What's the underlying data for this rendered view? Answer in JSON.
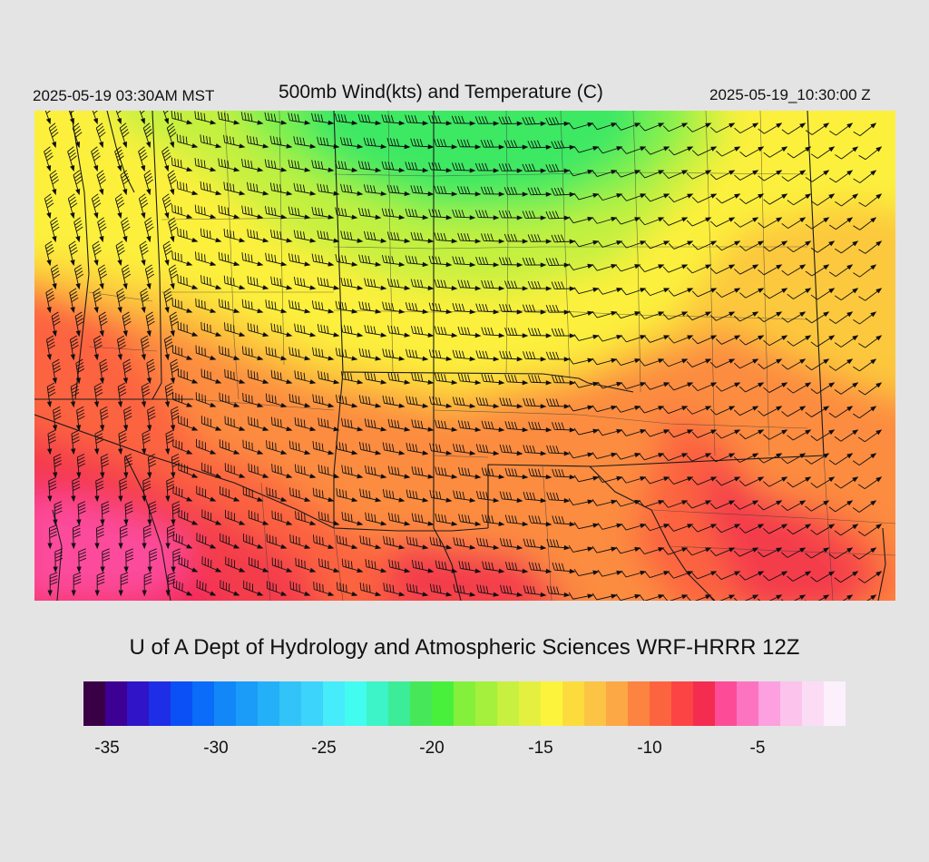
{
  "header": {
    "local_time": "2025-05-19 03:30AM MST",
    "title": "500mb Wind(kts) and Temperature (C)",
    "utc_time": "2025-05-19_10:30:00 Z"
  },
  "footer": {
    "credit": "U of A Dept of Hydrology and Atmospheric Sciences WRF-HRRR 12Z"
  },
  "colorbar": {
    "colors": [
      "#3a0046",
      "#3d0094",
      "#2f14c8",
      "#1e2ee6",
      "#0a50f5",
      "#0a6cf8",
      "#1288f8",
      "#1a9cf8",
      "#24b0f8",
      "#32c4f8",
      "#3cd4fa",
      "#46ecfa",
      "#42fcf0",
      "#3cf4c8",
      "#3cec98",
      "#46e85a",
      "#48f03c",
      "#84f03c",
      "#a4f03c",
      "#c8f040",
      "#e4f040",
      "#fcf43c",
      "#fcdc3c",
      "#fcc444",
      "#fca844",
      "#fc8440",
      "#fc6440",
      "#fc4444",
      "#f42c50",
      "#fc4c98",
      "#fc74c0",
      "#fca0e0",
      "#fcc4ec",
      "#fcdcf4",
      "#fcf0fc"
    ],
    "tick_labels": [
      "-35",
      "-30",
      "-25",
      "-20",
      "-15",
      "-10",
      "-5"
    ]
  },
  "map": {
    "field": "500mb temperature (C) with wind barbs (kts)",
    "temperature_colors": {
      "green": "#3ce864",
      "light_green": "#7cf050",
      "yellow_green": "#c4f040",
      "yellow": "#fcf03c",
      "gold": "#fcc83c",
      "orange": "#fc8c40",
      "red_orange": "#fc6440",
      "red": "#f43c4c",
      "magenta_red": "#f42c58",
      "pink": "#fc4c9c"
    }
  }
}
